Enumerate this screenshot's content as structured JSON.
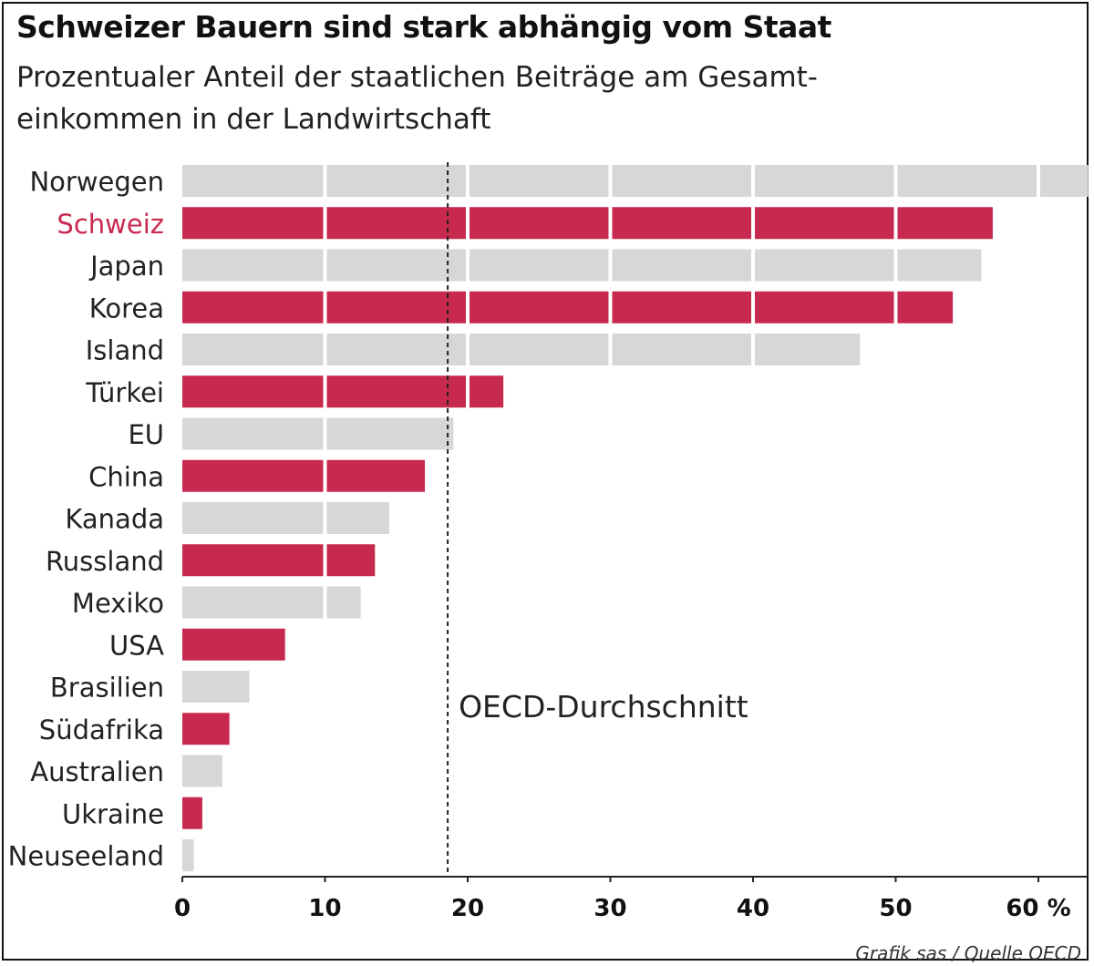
{
  "title": "Schweizer Bauern sind stark abhängig vom Staat",
  "subtitle": "Prozentualer Anteil der staatlichen Beiträge am Gesamt-\neinkommen in der Landwirtschaft",
  "source": "Grafik sas / Quelle OECD",
  "colors": {
    "highlight": "#c8294f",
    "neutral": "#d7d7d7",
    "highlight_label": "#c8294f",
    "label": "#222222"
  },
  "chart_data": {
    "type": "bar",
    "orientation": "horizontal",
    "categories": [
      "Norwegen",
      "Schweiz",
      "Japan",
      "Korea",
      "Island",
      "Türkei",
      "EU",
      "China",
      "Kanada",
      "Russland",
      "Mexiko",
      "USA",
      "Brasilien",
      "Südafrika",
      "Australien",
      "Ukraine",
      "Neuseeland"
    ],
    "values": [
      63.5,
      56.8,
      56.0,
      54.0,
      47.5,
      22.5,
      19.0,
      17.0,
      14.5,
      13.5,
      12.5,
      7.2,
      4.7,
      3.3,
      2.8,
      1.4,
      0.8
    ],
    "bar_colors": [
      "neutral",
      "highlight",
      "neutral",
      "highlight",
      "neutral",
      "highlight",
      "neutral",
      "highlight",
      "neutral",
      "highlight",
      "neutral",
      "highlight",
      "neutral",
      "highlight",
      "neutral",
      "highlight",
      "neutral"
    ],
    "highlighted_label": "Schweiz",
    "xlim": [
      0,
      63.5
    ],
    "xticks": [
      0,
      10,
      20,
      30,
      40,
      50,
      60
    ],
    "xtick_labels": [
      "0",
      "10",
      "20",
      "30",
      "40",
      "50",
      "60 %"
    ],
    "reference_line": {
      "value": 18.6,
      "label": "OECD-Durchschnitt",
      "style": "dashed"
    },
    "grid": true
  }
}
